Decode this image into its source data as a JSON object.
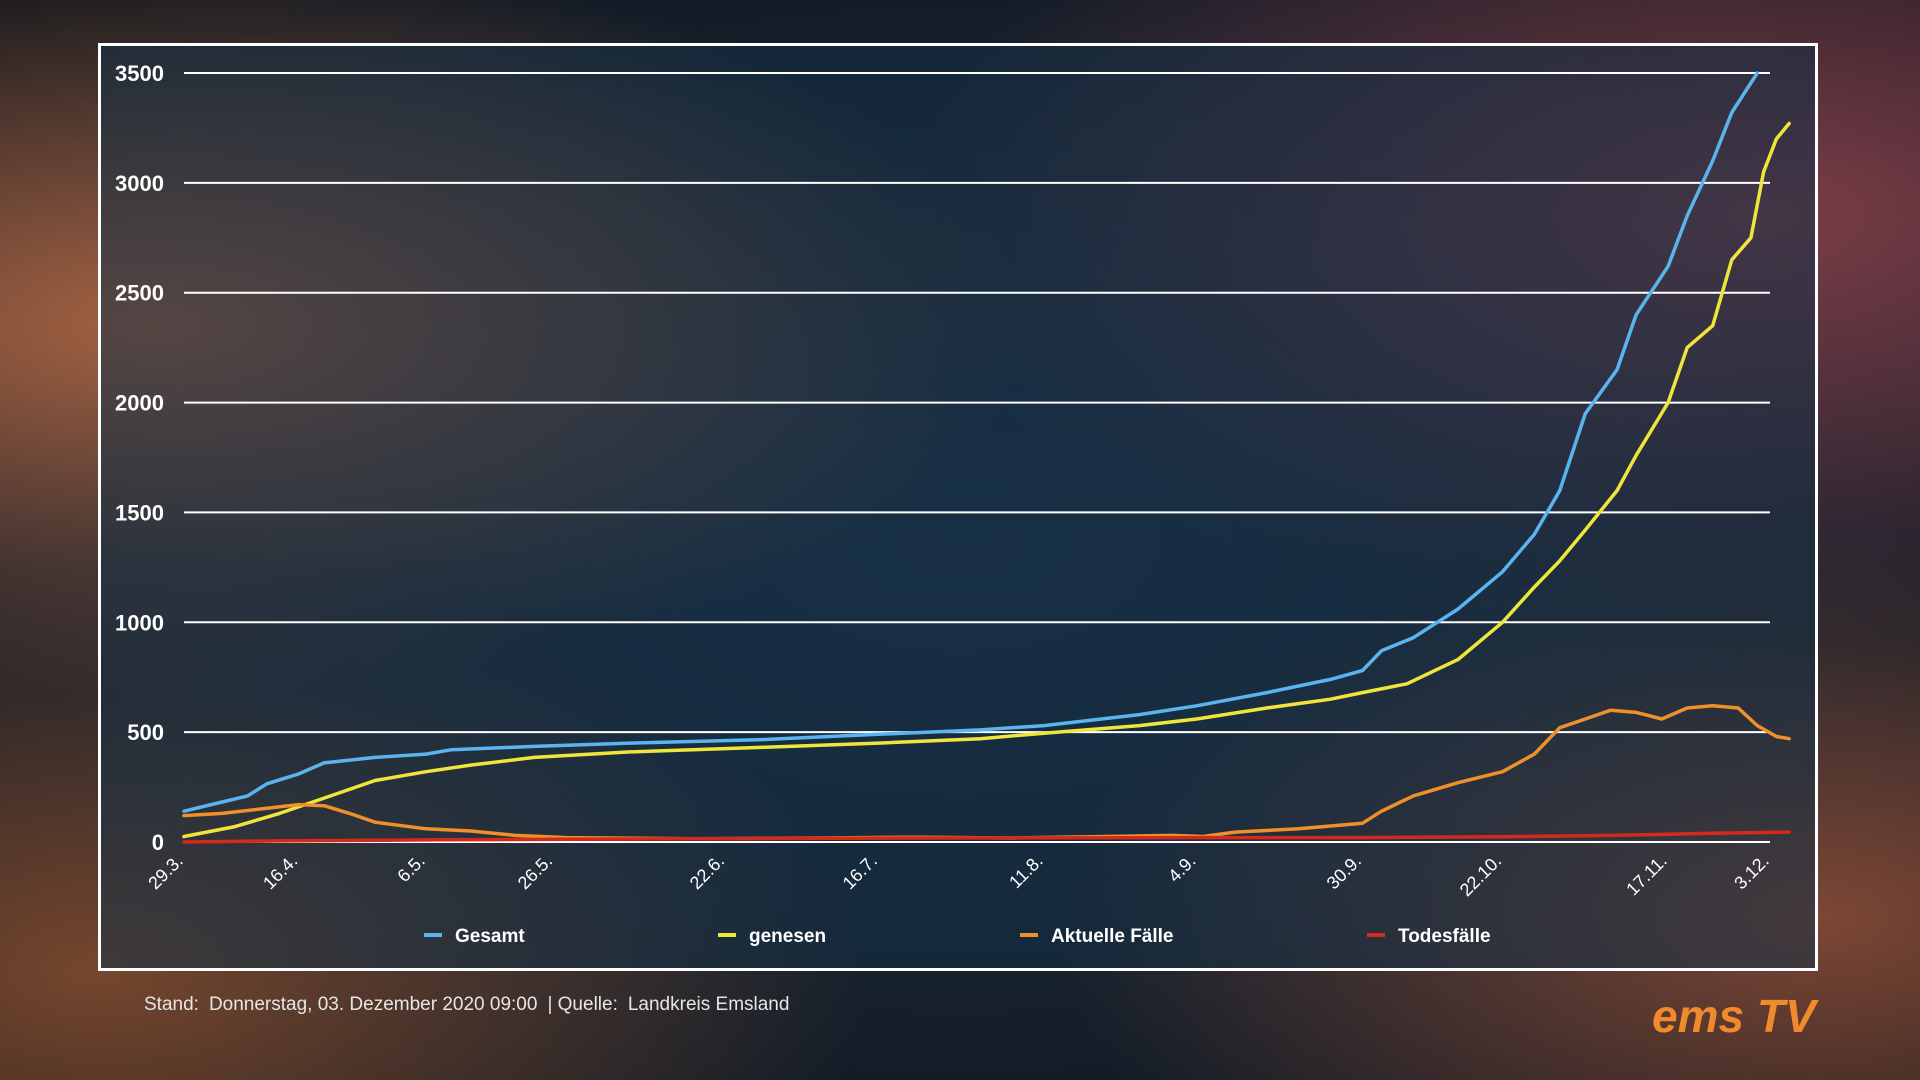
{
  "chart_data": {
    "type": "line",
    "title": "",
    "xlabel": "",
    "ylabel": "",
    "ylim": [
      0,
      3500
    ],
    "yticks": [
      0,
      500,
      1000,
      1500,
      2000,
      2500,
      3000,
      3500
    ],
    "ytick_labels": [
      "0",
      "500",
      "1000",
      "1500",
      "2000",
      "2500",
      "3000",
      "3500"
    ],
    "x_range_days": [
      0,
      249
    ],
    "xticks": [
      {
        "label": "29.3.",
        "day": 0
      },
      {
        "label": "16.4.",
        "day": 18
      },
      {
        "label": "6.5.",
        "day": 38
      },
      {
        "label": "26.5.",
        "day": 58
      },
      {
        "label": "22.6.",
        "day": 85
      },
      {
        "label": "16.7.",
        "day": 109
      },
      {
        "label": "11.8.",
        "day": 135
      },
      {
        "label": "4.9.",
        "day": 159
      },
      {
        "label": "30.9.",
        "day": 185
      },
      {
        "label": "22.10.",
        "day": 207
      },
      {
        "label": "17.11.",
        "day": 233
      },
      {
        "label": "3.12.",
        "day": 249
      }
    ],
    "grid": true,
    "legend_position": "bottom",
    "series": [
      {
        "name": "Gesamt",
        "color": "#5ab4ee",
        "points": [
          [
            0,
            140
          ],
          [
            5,
            175
          ],
          [
            10,
            210
          ],
          [
            13,
            265
          ],
          [
            18,
            310
          ],
          [
            22,
            360
          ],
          [
            30,
            385
          ],
          [
            38,
            400
          ],
          [
            42,
            420
          ],
          [
            55,
            435
          ],
          [
            70,
            450
          ],
          [
            90,
            465
          ],
          [
            109,
            490
          ],
          [
            125,
            510
          ],
          [
            135,
            530
          ],
          [
            150,
            580
          ],
          [
            159,
            620
          ],
          [
            170,
            680
          ],
          [
            180,
            740
          ],
          [
            185,
            780
          ],
          [
            188,
            870
          ],
          [
            193,
            930
          ],
          [
            200,
            1060
          ],
          [
            207,
            1230
          ],
          [
            212,
            1400
          ],
          [
            216,
            1600
          ],
          [
            220,
            1950
          ],
          [
            225,
            2150
          ],
          [
            228,
            2400
          ],
          [
            233,
            2620
          ],
          [
            236,
            2850
          ],
          [
            240,
            3100
          ],
          [
            243,
            3320
          ],
          [
            247,
            3500
          ]
        ]
      },
      {
        "name": "genesen",
        "color": "#f0e53a",
        "points": [
          [
            0,
            25
          ],
          [
            8,
            70
          ],
          [
            15,
            130
          ],
          [
            22,
            200
          ],
          [
            30,
            280
          ],
          [
            38,
            320
          ],
          [
            45,
            350
          ],
          [
            55,
            385
          ],
          [
            70,
            410
          ],
          [
            90,
            430
          ],
          [
            109,
            450
          ],
          [
            125,
            470
          ],
          [
            135,
            495
          ],
          [
            150,
            530
          ],
          [
            159,
            560
          ],
          [
            170,
            610
          ],
          [
            180,
            650
          ],
          [
            185,
            680
          ],
          [
            192,
            720
          ],
          [
            200,
            830
          ],
          [
            207,
            1000
          ],
          [
            212,
            1160
          ],
          [
            216,
            1280
          ],
          [
            220,
            1420
          ],
          [
            225,
            1600
          ],
          [
            228,
            1760
          ],
          [
            233,
            2000
          ],
          [
            236,
            2250
          ],
          [
            240,
            2350
          ],
          [
            243,
            2650
          ],
          [
            246,
            2750
          ],
          [
            248,
            3050
          ],
          [
            250,
            3200
          ],
          [
            252,
            3270
          ]
        ]
      },
      {
        "name": "Aktuelle Fälle",
        "color": "#f0902a",
        "points": [
          [
            0,
            120
          ],
          [
            6,
            130
          ],
          [
            12,
            150
          ],
          [
            18,
            170
          ],
          [
            22,
            165
          ],
          [
            26,
            130
          ],
          [
            30,
            90
          ],
          [
            38,
            60
          ],
          [
            45,
            50
          ],
          [
            52,
            30
          ],
          [
            60,
            20
          ],
          [
            80,
            15
          ],
          [
            100,
            18
          ],
          [
            115,
            22
          ],
          [
            130,
            18
          ],
          [
            145,
            25
          ],
          [
            155,
            30
          ],
          [
            160,
            25
          ],
          [
            165,
            45
          ],
          [
            175,
            60
          ],
          [
            185,
            85
          ],
          [
            188,
            140
          ],
          [
            193,
            210
          ],
          [
            200,
            270
          ],
          [
            207,
            320
          ],
          [
            212,
            400
          ],
          [
            216,
            520
          ],
          [
            220,
            560
          ],
          [
            224,
            600
          ],
          [
            228,
            590
          ],
          [
            232,
            560
          ],
          [
            236,
            610
          ],
          [
            240,
            620
          ],
          [
            244,
            610
          ],
          [
            247,
            530
          ],
          [
            250,
            480
          ],
          [
            252,
            470
          ]
        ]
      },
      {
        "name": "Todesfälle",
        "color": "#d42a1e",
        "points": [
          [
            0,
            0
          ],
          [
            15,
            5
          ],
          [
            40,
            10
          ],
          [
            80,
            15
          ],
          [
            120,
            18
          ],
          [
            160,
            20
          ],
          [
            185,
            20
          ],
          [
            207,
            24
          ],
          [
            220,
            28
          ],
          [
            233,
            35
          ],
          [
            240,
            40
          ],
          [
            252,
            45
          ]
        ]
      }
    ]
  },
  "footer": {
    "stand_label": "Stand:",
    "stand_value": "Donnerstag, 03. Dezember 2020 09:00",
    "quelle_label": "| Quelle:",
    "quelle_value": "Landkreis Emsland"
  },
  "logo": {
    "text": "ems TV",
    "color": "#f08a2c"
  }
}
